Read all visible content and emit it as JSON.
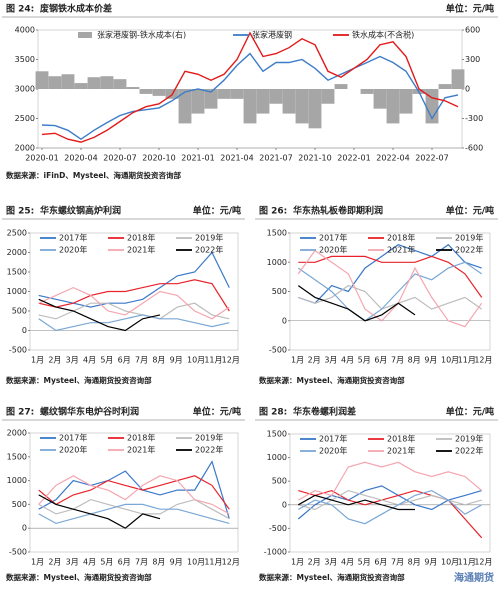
{
  "chart_data": [
    {
      "type": "line",
      "figure": "图 24:",
      "title": "废钢铁水成本价差",
      "unit": "单位：元/吨",
      "source": "数据来源：iFinD、Mysteel、海通期货投资咨询部",
      "x": [
        "2020-01",
        "2020-02",
        "2020-03",
        "2020-04",
        "2020-05",
        "2020-06",
        "2020-07",
        "2020-08",
        "2020-09",
        "2020-10",
        "2020-11",
        "2020-12",
        "2021-01",
        "2021-02",
        "2021-03",
        "2021-04",
        "2021-05",
        "2021-06",
        "2021-07",
        "2021-08",
        "2021-09",
        "2021-10",
        "2021-11",
        "2021-12",
        "2022-01",
        "2022-02",
        "2022-03",
        "2022-04",
        "2022-05",
        "2022-06",
        "2022-07",
        "2022-08",
        "2022-09"
      ],
      "xticks": [
        "2020-01",
        "2020-04",
        "2020-07",
        "2020-10",
        "2021-01",
        "2021-04",
        "2021-07",
        "2021-10",
        "2022-01",
        "2022-04",
        "2022-07"
      ],
      "ylim": [
        2000,
        4000
      ],
      "yticks": [
        2000,
        2500,
        3000,
        3500,
        4000
      ],
      "y2lim": [
        -600,
        600
      ],
      "y2ticks": [
        -600,
        -300,
        0,
        300,
        600
      ],
      "series": [
        {
          "name": "张家港废钢-铁水成本(右)",
          "type": "bar",
          "axis": "y2",
          "color": "#a6a6a6",
          "values": [
            180,
            130,
            150,
            60,
            120,
            130,
            100,
            20,
            -50,
            -70,
            -100,
            -350,
            -250,
            -200,
            -100,
            -100,
            -350,
            -250,
            -150,
            -250,
            -350,
            -400,
            -150,
            50,
            0,
            -50,
            -200,
            -350,
            -250,
            -50,
            -350,
            50,
            200
          ]
        },
        {
          "name": "张家港废钢",
          "type": "line",
          "color": "#3d7cc9",
          "values": [
            2390,
            2380,
            2300,
            2150,
            2300,
            2430,
            2550,
            2620,
            2650,
            2680,
            2800,
            2950,
            3000,
            2950,
            3150,
            3400,
            3600,
            3300,
            3450,
            3450,
            3500,
            3350,
            3150,
            3250,
            3350,
            3450,
            3550,
            3450,
            3300,
            2950,
            2500,
            2850,
            2900
          ]
        },
        {
          "name": "铁水成本(不含税)",
          "type": "line",
          "color": "#e21a1a",
          "values": [
            2230,
            2250,
            2150,
            2100,
            2180,
            2300,
            2450,
            2600,
            2700,
            2750,
            2900,
            3300,
            3250,
            3150,
            3250,
            3500,
            3950,
            3550,
            3600,
            3700,
            3850,
            3750,
            3300,
            3200,
            3350,
            3500,
            3750,
            3800,
            3550,
            3000,
            2850,
            2800,
            2700
          ]
        }
      ]
    },
    {
      "type": "line",
      "figure": "图 25:",
      "title": "华东螺纹钢高炉利润",
      "unit": "单位：元/吨",
      "source": "数据来源：Mysteel、海通期货投资咨询部",
      "categories": [
        "1月",
        "2月",
        "3月",
        "4月",
        "5月",
        "6月",
        "7月",
        "8月",
        "9月",
        "10月",
        "11月",
        "12月"
      ],
      "ylim": [
        -500,
        2500
      ],
      "yticks": [
        -500,
        0,
        500,
        1000,
        1500,
        2000,
        2500
      ],
      "series": [
        {
          "name": "2017年",
          "color": "#3a78c9",
          "values": [
            900,
            800,
            700,
            600,
            700,
            700,
            800,
            1100,
            1400,
            1500,
            2000,
            1100
          ]
        },
        {
          "name": "2018年",
          "color": "#e8232a",
          "values": [
            700,
            600,
            700,
            900,
            1000,
            1000,
            1100,
            1200,
            1200,
            1300,
            1200,
            500
          ]
        },
        {
          "name": "2019年",
          "color": "#bdbdbd",
          "values": [
            400,
            300,
            500,
            700,
            700,
            500,
            400,
            300,
            600,
            700,
            400,
            300
          ]
        },
        {
          "name": "2020年",
          "color": "#7aa7d6",
          "values": [
            300,
            0,
            100,
            200,
            200,
            300,
            400,
            300,
            300,
            200,
            100,
            200
          ]
        },
        {
          "name": "2021年",
          "color": "#f4a6b0",
          "values": [
            700,
            900,
            1100,
            900,
            500,
            400,
            700,
            1000,
            900,
            500,
            300,
            600
          ]
        },
        {
          "name": "2022年",
          "color": "#000000",
          "values": [
            800,
            600,
            500,
            300,
            100,
            0,
            300,
            400,
            null,
            null,
            null,
            null
          ]
        }
      ]
    },
    {
      "type": "line",
      "figure": "图 26:",
      "title": "华东热轧板卷即期利润",
      "unit": "单位：元/吨",
      "source": "数据来源：Mysteel、海通期货投资咨询部",
      "categories": [
        "1月",
        "2月",
        "3月",
        "4月",
        "5月",
        "6月",
        "7月",
        "8月",
        "9月",
        "10月",
        "11月",
        "12月"
      ],
      "ylim": [
        -500,
        1500
      ],
      "yticks": [
        -500,
        0,
        500,
        1000,
        1500
      ],
      "series": [
        {
          "name": "2017年",
          "color": "#3a78c9",
          "values": [
            400,
            300,
            600,
            500,
            900,
            1100,
            1300,
            1200,
            1100,
            1300,
            1000,
            900
          ]
        },
        {
          "name": "2018年",
          "color": "#e8232a",
          "values": [
            1000,
            1000,
            1100,
            1100,
            1100,
            1000,
            1000,
            1000,
            1100,
            1000,
            800,
            400
          ]
        },
        {
          "name": "2019年",
          "color": "#bdbdbd",
          "values": [
            400,
            300,
            400,
            600,
            500,
            200,
            300,
            400,
            200,
            300,
            400,
            200
          ]
        },
        {
          "name": "2020年",
          "color": "#7aa7d6",
          "values": [
            900,
            700,
            500,
            200,
            0,
            200,
            500,
            800,
            700,
            900,
            1000,
            800
          ]
        },
        {
          "name": "2021年",
          "color": "#f4a6b0",
          "values": [
            800,
            1200,
            1000,
            800,
            200,
            0,
            300,
            900,
            400,
            0,
            -100,
            300
          ]
        },
        {
          "name": "2022年",
          "color": "#000000",
          "values": [
            600,
            400,
            300,
            200,
            0,
            100,
            300,
            100,
            null,
            null,
            null,
            null
          ]
        }
      ]
    },
    {
      "type": "line",
      "figure": "图 27:",
      "title": "螺纹钢华东电炉谷时利润",
      "unit": "单位：元/吨",
      "source": "数据来源：Mysteel、海通期货投资咨询部",
      "categories": [
        "1月",
        "2月",
        "3月",
        "4月",
        "5月",
        "6月",
        "7月",
        "8月",
        "9月",
        "10月",
        "11月",
        "12月"
      ],
      "ylim": [
        -500,
        2000
      ],
      "yticks": [
        -500,
        0,
        500,
        1000,
        1500,
        2000
      ],
      "series": [
        {
          "name": "2017年",
          "color": "#3a78c9",
          "values": [
            400,
            600,
            1000,
            900,
            1000,
            1200,
            800,
            700,
            800,
            800,
            1400,
            200
          ]
        },
        {
          "name": "2018年",
          "color": "#e8232a",
          "values": [
            800,
            500,
            700,
            800,
            1000,
            900,
            800,
            900,
            1000,
            1100,
            900,
            400
          ]
        },
        {
          "name": "2019年",
          "color": "#bdbdbd",
          "values": [
            500,
            300,
            400,
            600,
            500,
            400,
            300,
            300,
            500,
            600,
            400,
            200
          ]
        },
        {
          "name": "2020年",
          "color": "#7aa7d6",
          "values": [
            300,
            100,
            200,
            300,
            400,
            500,
            500,
            400,
            400,
            300,
            200,
            100
          ]
        },
        {
          "name": "2021年",
          "color": "#f4a6b0",
          "values": [
            500,
            900,
            1100,
            900,
            800,
            600,
            900,
            1100,
            1000,
            600,
            500,
            300
          ]
        },
        {
          "name": "2022年",
          "color": "#000000",
          "values": [
            700,
            500,
            400,
            300,
            200,
            0,
            300,
            200,
            null,
            null,
            null,
            null
          ]
        }
      ]
    },
    {
      "type": "line",
      "figure": "图 28:",
      "title": "华东卷螺利润差",
      "unit": "单位：元/吨",
      "source": "数据来源：Mysteel、海通期货投资咨询部",
      "watermark": "海通期货",
      "categories": [
        "1月",
        "2月",
        "3月",
        "4月",
        "5月",
        "6月",
        "7月",
        "8月",
        "9月",
        "10月",
        "11月",
        "12月"
      ],
      "ylim": [
        -1000,
        1500
      ],
      "yticks": [
        -1000,
        -500,
        0,
        500,
        1000,
        1500
      ],
      "series": [
        {
          "name": "2017年",
          "color": "#3a78c9",
          "values": [
            -300,
            0,
            200,
            100,
            300,
            400,
            200,
            0,
            -100,
            100,
            200,
            300
          ]
        },
        {
          "name": "2018年",
          "color": "#e8232a",
          "values": [
            300,
            200,
            300,
            100,
            0,
            100,
            200,
            300,
            200,
            100,
            -300,
            -700
          ]
        },
        {
          "name": "2019年",
          "color": "#bdbdbd",
          "values": [
            0,
            -100,
            100,
            300,
            200,
            100,
            0,
            100,
            200,
            100,
            0,
            100
          ]
        },
        {
          "name": "2020年",
          "color": "#7aa7d6",
          "values": [
            -100,
            100,
            0,
            -300,
            -400,
            -200,
            0,
            200,
            300,
            100,
            -200,
            0
          ]
        },
        {
          "name": "2021年",
          "color": "#f4a6b0",
          "values": [
            100,
            300,
            200,
            800,
            900,
            800,
            900,
            700,
            600,
            700,
            600,
            300
          ]
        },
        {
          "name": "2022年",
          "color": "#000000",
          "values": [
            0,
            200,
            100,
            0,
            100,
            0,
            -100,
            -100,
            null,
            null,
            null,
            null
          ]
        }
      ]
    }
  ]
}
